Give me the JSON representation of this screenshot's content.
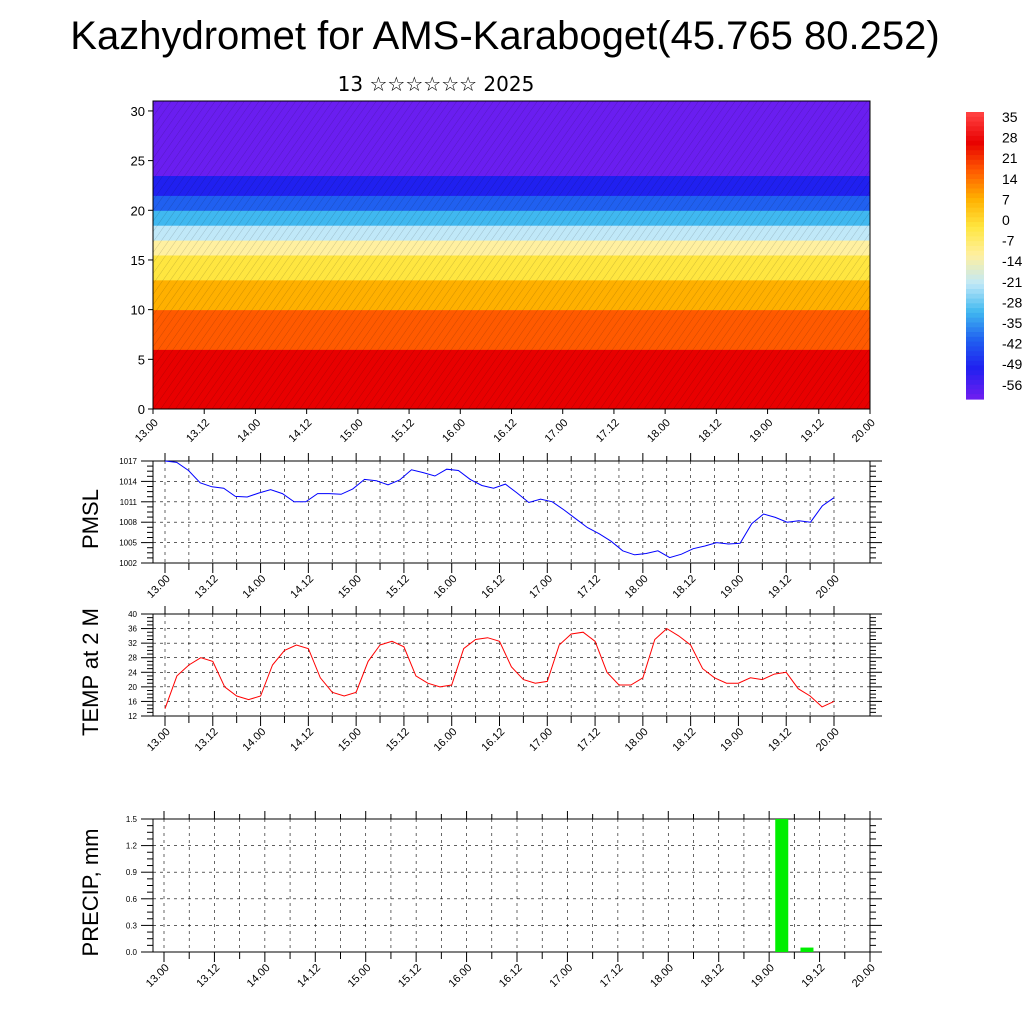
{
  "title": "Kazhydromet for AMS-Karaboget(45.765 80.252)",
  "subtitle": "13 ☆☆☆☆☆☆ 2025",
  "chart_data": [
    {
      "type": "heatmap",
      "name": "vertical-section",
      "x_tick_labels": [
        "13.00",
        "13.12",
        "14.00",
        "14.12",
        "15.00",
        "15.12",
        "16.00",
        "16.12",
        "17.00",
        "17.12",
        "18.00",
        "18.12",
        "19.00",
        "19.12",
        "20.00"
      ],
      "y_ticks": [
        0,
        5,
        10,
        15,
        20,
        25,
        30
      ],
      "ylim": [
        0,
        31
      ],
      "colorbar_labels": [
        "35",
        "28",
        "21",
        "14",
        "7",
        "0",
        "-7",
        "-14",
        "-21",
        "-28",
        "-35",
        "-42",
        "-49",
        "-56"
      ],
      "colormap": [
        "#ff4040",
        "#e80000",
        "#ff5a00",
        "#ffb000",
        "#ffe640",
        "#fff0a0",
        "#c0e8f8",
        "#40b8f0",
        "#2060f0",
        "#2020f0",
        "#6a1ef0"
      ],
      "vertical_profile": [
        {
          "level": 0,
          "value": 30
        },
        {
          "level": 5,
          "value": 24
        },
        {
          "level": 10,
          "value": 12
        },
        {
          "level": 15,
          "value": -4
        },
        {
          "level": 18,
          "value": -20
        },
        {
          "level": 20,
          "value": -35
        },
        {
          "level": 23,
          "value": -50
        },
        {
          "level": 25,
          "value": -56
        },
        {
          "level": 31,
          "value": -52
        }
      ]
    },
    {
      "type": "line",
      "name": "pmsl",
      "ylabel": "PMSL",
      "ylim": [
        1002,
        1017
      ],
      "y_ticks": [
        1002,
        1005,
        1008,
        1011,
        1014,
        1017
      ],
      "x_tick_labels": [
        "13.00",
        "13.12",
        "14.00",
        "14.12",
        "15.00",
        "15.12",
        "16.00",
        "16.12",
        "17.00",
        "17.12",
        "18.00",
        "18.12",
        "19.00",
        "19.12",
        "20.00"
      ],
      "color": "#0000ff",
      "values": [
        1017,
        1016.8,
        1015.6,
        1013.8,
        1013.2,
        1013,
        1011.8,
        1011.7,
        1012.3,
        1012.8,
        1012.2,
        1011,
        1011,
        1012.2,
        1012.2,
        1012.1,
        1012.9,
        1014.3,
        1014.1,
        1013.5,
        1014.2,
        1015.7,
        1015.3,
        1014.8,
        1015.8,
        1015.6,
        1014.3,
        1013.4,
        1013,
        1013.6,
        1012.3,
        1010.9,
        1011.4,
        1011,
        1009.8,
        1008.5,
        1007.2,
        1006.3,
        1005.2,
        1003.8,
        1003.2,
        1003.4,
        1003.8,
        1002.8,
        1003.3,
        1004.1,
        1004.5,
        1005,
        1004.8,
        1004.9,
        1007.8,
        1009.2,
        1008.7,
        1008,
        1008.2,
        1008,
        1010.4,
        1011.6
      ]
    },
    {
      "type": "line",
      "name": "temp2m",
      "ylabel": "TEMP at 2 M",
      "ylim": [
        12,
        40
      ],
      "y_ticks": [
        12,
        16,
        20,
        24,
        28,
        32,
        36,
        40
      ],
      "x_tick_labels": [
        "13.00",
        "13.12",
        "14.00",
        "14.12",
        "15.00",
        "15.12",
        "16.00",
        "16.12",
        "17.00",
        "17.12",
        "18.00",
        "18.12",
        "19.00",
        "19.12",
        "20.00"
      ],
      "color": "#ff0000",
      "values": [
        14,
        23,
        26,
        28,
        27,
        20,
        17.5,
        16.5,
        17.5,
        26,
        30,
        31.5,
        30.5,
        22.5,
        18.5,
        17.5,
        18.5,
        27,
        31.5,
        32.5,
        31,
        23,
        21,
        20,
        20.5,
        30.5,
        33,
        33.5,
        32.5,
        25.5,
        22,
        21,
        21.5,
        31.5,
        34.5,
        35,
        32.5,
        24,
        20.5,
        20.5,
        22.5,
        33,
        36,
        34,
        31.5,
        25,
        22.5,
        21,
        21,
        22.5,
        22,
        23.5,
        24,
        19.5,
        17.5,
        14.5,
        16
      ]
    },
    {
      "type": "bar",
      "name": "precip",
      "ylabel": "PRECIP, mm",
      "ylim": [
        0,
        1.5
      ],
      "y_ticks": [
        "0.0",
        "0.3",
        "0.6",
        "0.9",
        "1.2",
        "1.5"
      ],
      "x_tick_labels": [
        "13.00",
        "13.12",
        "14.00",
        "14.12",
        "15.00",
        "15.12",
        "16.00",
        "16.12",
        "17.00",
        "17.12",
        "18.00",
        "18.12",
        "19.00",
        "19.12",
        "20.00"
      ],
      "color": "#00ee00",
      "bars": [
        {
          "x": 19.125,
          "value": 1.5
        },
        {
          "x": 19.375,
          "value": 0.05
        }
      ]
    }
  ]
}
